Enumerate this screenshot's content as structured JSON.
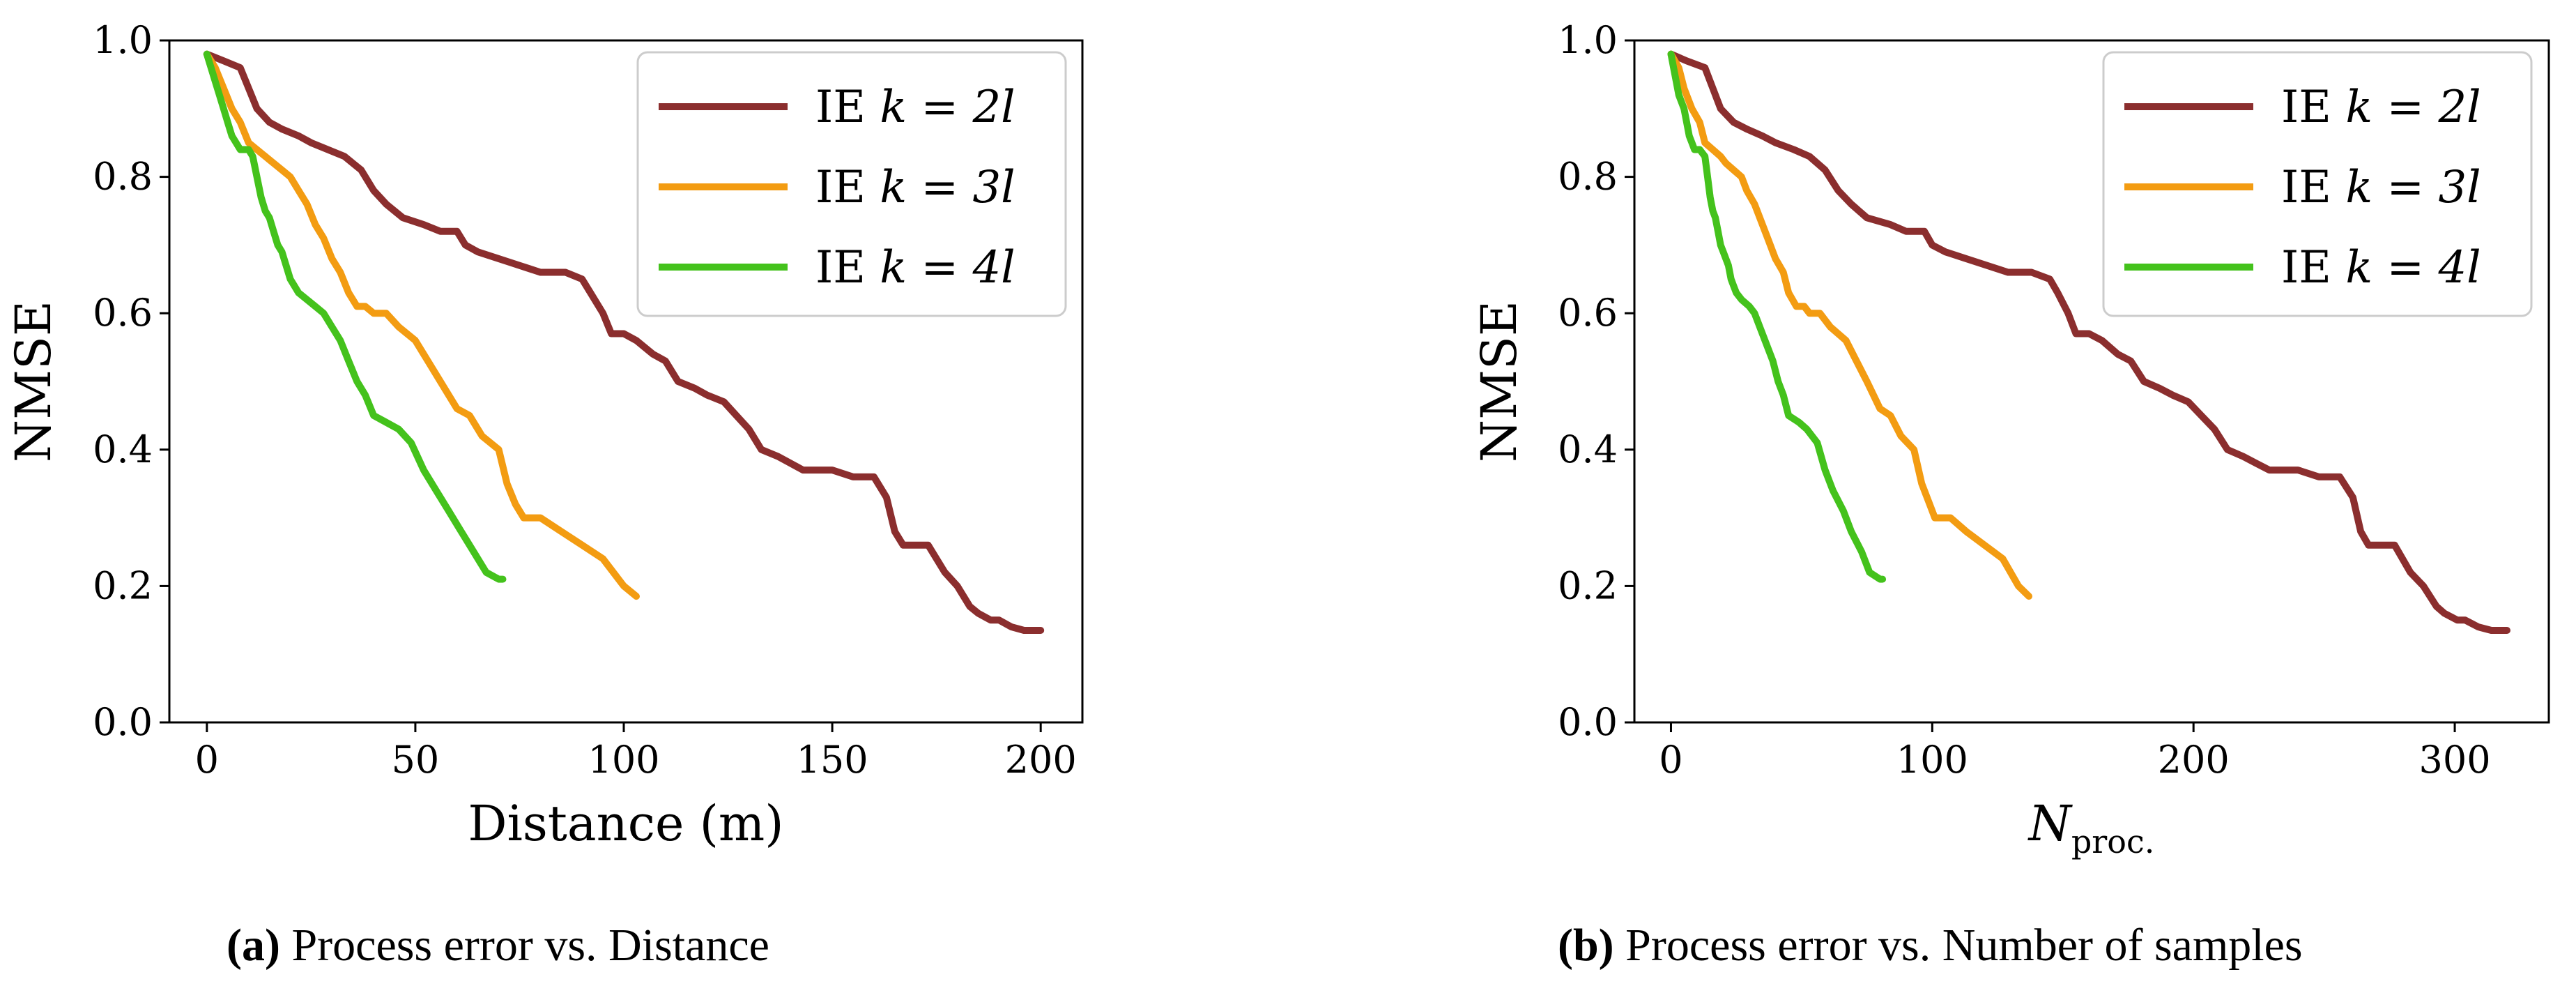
{
  "chart_data": [
    {
      "type": "line",
      "panel_id": "a",
      "ylabel": "NMSE",
      "xlabel": "Distance (m)",
      "xlim": [
        -9,
        210
      ],
      "ylim": [
        0,
        1.0
      ],
      "xticks": [
        0,
        50,
        100,
        150,
        200
      ],
      "yticks": [
        "0.0",
        "0.2",
        "0.4",
        "0.6",
        "0.8",
        "1.0"
      ],
      "legend_position": "top-right",
      "caption_tag": "(a)",
      "caption_text": "Process error vs. Distance",
      "series": [
        {
          "name": "IE k = 2l",
          "legend_prefix": "IE ",
          "legend_math": "k = 2l",
          "color": "#8b2e2e",
          "x": [
            0,
            4,
            8,
            10,
            12,
            15,
            18,
            22,
            25,
            29,
            33,
            37,
            40,
            43,
            47,
            52,
            56,
            60,
            62,
            65,
            70,
            75,
            80,
            86,
            90,
            92,
            95,
            97,
            100,
            103,
            107,
            110,
            113,
            117,
            120,
            124,
            127,
            130,
            133,
            137,
            140,
            143,
            147,
            150,
            155,
            160,
            163,
            165,
            167,
            170,
            173,
            177,
            180,
            183,
            185,
            188,
            190,
            193,
            196,
            200
          ],
          "y": [
            0.98,
            0.97,
            0.96,
            0.93,
            0.9,
            0.88,
            0.87,
            0.86,
            0.85,
            0.84,
            0.83,
            0.81,
            0.78,
            0.76,
            0.74,
            0.73,
            0.72,
            0.72,
            0.7,
            0.69,
            0.68,
            0.67,
            0.66,
            0.66,
            0.65,
            0.63,
            0.6,
            0.57,
            0.57,
            0.56,
            0.54,
            0.53,
            0.5,
            0.49,
            0.48,
            0.47,
            0.45,
            0.43,
            0.4,
            0.39,
            0.38,
            0.37,
            0.37,
            0.37,
            0.36,
            0.36,
            0.33,
            0.28,
            0.26,
            0.26,
            0.26,
            0.22,
            0.2,
            0.17,
            0.16,
            0.15,
            0.15,
            0.14,
            0.135,
            0.135
          ]
        },
        {
          "name": "IE k = 3l",
          "legend_prefix": "IE ",
          "legend_math": "k = 3l",
          "color": "#f39c12",
          "x": [
            0,
            2,
            4,
            6,
            8,
            10,
            12,
            14,
            16,
            18,
            20,
            22,
            24,
            26,
            28,
            30,
            32,
            34,
            36,
            38,
            40,
            43,
            46,
            50,
            53,
            56,
            60,
            63,
            66,
            70,
            72,
            74,
            76,
            80,
            85,
            90,
            95,
            100,
            103
          ],
          "y": [
            0.98,
            0.96,
            0.93,
            0.9,
            0.88,
            0.85,
            0.84,
            0.83,
            0.82,
            0.81,
            0.8,
            0.78,
            0.76,
            0.73,
            0.71,
            0.68,
            0.66,
            0.63,
            0.61,
            0.61,
            0.6,
            0.6,
            0.58,
            0.56,
            0.53,
            0.5,
            0.46,
            0.45,
            0.42,
            0.4,
            0.35,
            0.32,
            0.3,
            0.3,
            0.28,
            0.26,
            0.24,
            0.2,
            0.185
          ]
        },
        {
          "name": "IE k = 4l",
          "legend_prefix": "IE ",
          "legend_math": "k = 4l",
          "color": "#44c21c",
          "x": [
            0,
            1,
            2,
            3,
            4,
            5,
            6,
            7,
            8,
            9,
            10,
            11,
            12,
            13,
            14,
            15,
            16,
            17,
            18,
            19,
            20,
            21,
            22,
            24,
            26,
            28,
            30,
            32,
            34,
            36,
            38,
            40,
            43,
            46,
            49,
            52,
            55,
            58,
            61,
            64,
            67,
            70,
            71
          ],
          "y": [
            0.98,
            0.96,
            0.94,
            0.92,
            0.9,
            0.88,
            0.86,
            0.85,
            0.84,
            0.84,
            0.84,
            0.83,
            0.8,
            0.77,
            0.75,
            0.74,
            0.72,
            0.7,
            0.69,
            0.67,
            0.65,
            0.64,
            0.63,
            0.62,
            0.61,
            0.6,
            0.58,
            0.56,
            0.53,
            0.5,
            0.48,
            0.45,
            0.44,
            0.43,
            0.41,
            0.37,
            0.34,
            0.31,
            0.28,
            0.25,
            0.22,
            0.21,
            0.21
          ]
        }
      ]
    },
    {
      "type": "line",
      "panel_id": "b",
      "ylabel": "NMSE",
      "xlabel_main": "N",
      "xlabel_sub": "proc.",
      "xlim": [
        -14,
        336
      ],
      "ylim": [
        0,
        1.0
      ],
      "xticks": [
        0,
        100,
        200,
        300
      ],
      "yticks": [
        "0.0",
        "0.2",
        "0.4",
        "0.6",
        "0.8",
        "1.0"
      ],
      "legend_position": "top-right",
      "caption_tag": "(b)",
      "caption_text": "Process error vs. Number of samples",
      "series": [
        {
          "name": "IE k = 2l",
          "legend_prefix": "IE ",
          "legend_math": "k = 2l",
          "color": "#8b2e2e",
          "x": [
            0,
            6,
            13,
            16,
            19,
            24,
            29,
            35,
            40,
            47,
            53,
            59,
            64,
            69,
            75,
            84,
            90,
            97,
            100,
            105,
            113,
            121,
            129,
            138,
            145,
            148,
            152,
            155,
            160,
            165,
            171,
            176,
            181,
            187,
            192,
            198,
            203,
            208,
            213,
            219,
            224,
            229,
            235,
            240,
            248,
            256,
            261,
            264,
            267,
            272,
            277,
            283,
            288,
            293,
            296,
            301,
            304,
            309,
            314,
            320
          ],
          "y": [
            0.98,
            0.97,
            0.96,
            0.93,
            0.9,
            0.88,
            0.87,
            0.86,
            0.85,
            0.84,
            0.83,
            0.81,
            0.78,
            0.76,
            0.74,
            0.73,
            0.72,
            0.72,
            0.7,
            0.69,
            0.68,
            0.67,
            0.66,
            0.66,
            0.65,
            0.63,
            0.6,
            0.57,
            0.57,
            0.56,
            0.54,
            0.53,
            0.5,
            0.49,
            0.48,
            0.47,
            0.45,
            0.43,
            0.4,
            0.39,
            0.38,
            0.37,
            0.37,
            0.37,
            0.36,
            0.36,
            0.33,
            0.28,
            0.26,
            0.26,
            0.26,
            0.22,
            0.2,
            0.17,
            0.16,
            0.15,
            0.15,
            0.14,
            0.135,
            0.135
          ]
        },
        {
          "name": "IE k = 3l",
          "legend_prefix": "IE ",
          "legend_math": "k = 3l",
          "color": "#f39c12",
          "x": [
            0,
            3,
            5,
            8,
            11,
            13,
            16,
            19,
            21,
            24,
            27,
            29,
            32,
            35,
            37,
            40,
            43,
            45,
            48,
            51,
            53,
            57,
            61,
            67,
            71,
            75,
            80,
            84,
            88,
            93,
            96,
            99,
            101,
            107,
            113,
            120,
            127,
            133,
            137
          ],
          "y": [
            0.98,
            0.96,
            0.93,
            0.9,
            0.88,
            0.85,
            0.84,
            0.83,
            0.82,
            0.81,
            0.8,
            0.78,
            0.76,
            0.73,
            0.71,
            0.68,
            0.66,
            0.63,
            0.61,
            0.61,
            0.6,
            0.6,
            0.58,
            0.56,
            0.53,
            0.5,
            0.46,
            0.45,
            0.42,
            0.4,
            0.35,
            0.32,
            0.3,
            0.3,
            0.28,
            0.26,
            0.24,
            0.2,
            0.185
          ]
        },
        {
          "name": "IE k = 4l",
          "legend_prefix": "IE ",
          "legend_math": "k = 4l",
          "color": "#44c21c",
          "x": [
            0,
            1,
            2,
            3,
            5,
            6,
            7,
            8,
            9,
            10,
            11,
            13,
            14,
            15,
            16,
            17,
            18,
            19,
            20,
            22,
            23,
            24,
            25,
            27,
            30,
            32,
            34,
            36,
            39,
            41,
            43,
            45,
            49,
            52,
            56,
            59,
            62,
            66,
            69,
            73,
            76,
            80,
            81
          ],
          "y": [
            0.98,
            0.96,
            0.94,
            0.92,
            0.9,
            0.88,
            0.86,
            0.85,
            0.84,
            0.84,
            0.84,
            0.83,
            0.8,
            0.77,
            0.75,
            0.74,
            0.72,
            0.7,
            0.69,
            0.67,
            0.65,
            0.64,
            0.63,
            0.62,
            0.61,
            0.6,
            0.58,
            0.56,
            0.53,
            0.5,
            0.48,
            0.45,
            0.44,
            0.43,
            0.41,
            0.37,
            0.34,
            0.31,
            0.28,
            0.25,
            0.22,
            0.21,
            0.21
          ]
        }
      ]
    }
  ]
}
